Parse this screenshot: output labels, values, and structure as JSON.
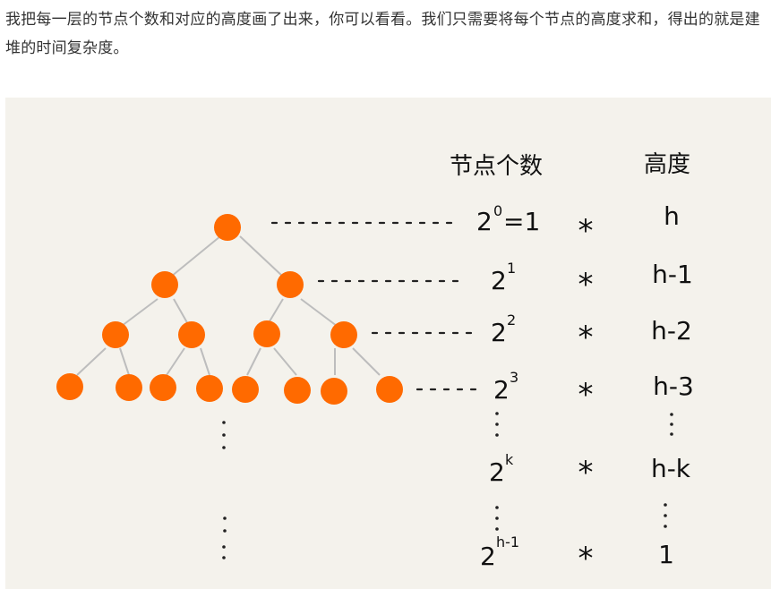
{
  "intro_text": "我把每一层的节点个数和对应的高度画了出来，你可以看看。我们只需要将每个节点的高度求和，得出的就是建堆的时间复杂度。",
  "diagram": {
    "header_count": "节点个数",
    "header_height": "高度",
    "rows": [
      {
        "base": "2",
        "exp": "0",
        "suffix": "=1",
        "op": "*",
        "height": "h"
      },
      {
        "base": "2",
        "exp": "1",
        "suffix": "",
        "op": "*",
        "height": "h-1"
      },
      {
        "base": "2",
        "exp": "2",
        "suffix": "",
        "op": "*",
        "height": "h-2"
      },
      {
        "base": "2",
        "exp": "3",
        "suffix": "",
        "op": "*",
        "height": "h-3"
      },
      {
        "base": "2",
        "exp": "k",
        "suffix": "",
        "op": "*",
        "height": "h-k"
      },
      {
        "base": "2",
        "exp": "h-1",
        "suffix": "",
        "op": "*",
        "height": "1"
      }
    ],
    "colors": {
      "node": "#ff6a00",
      "edge": "#bdbdbd",
      "ink": "#111111",
      "background": "#f4f2ec"
    }
  }
}
